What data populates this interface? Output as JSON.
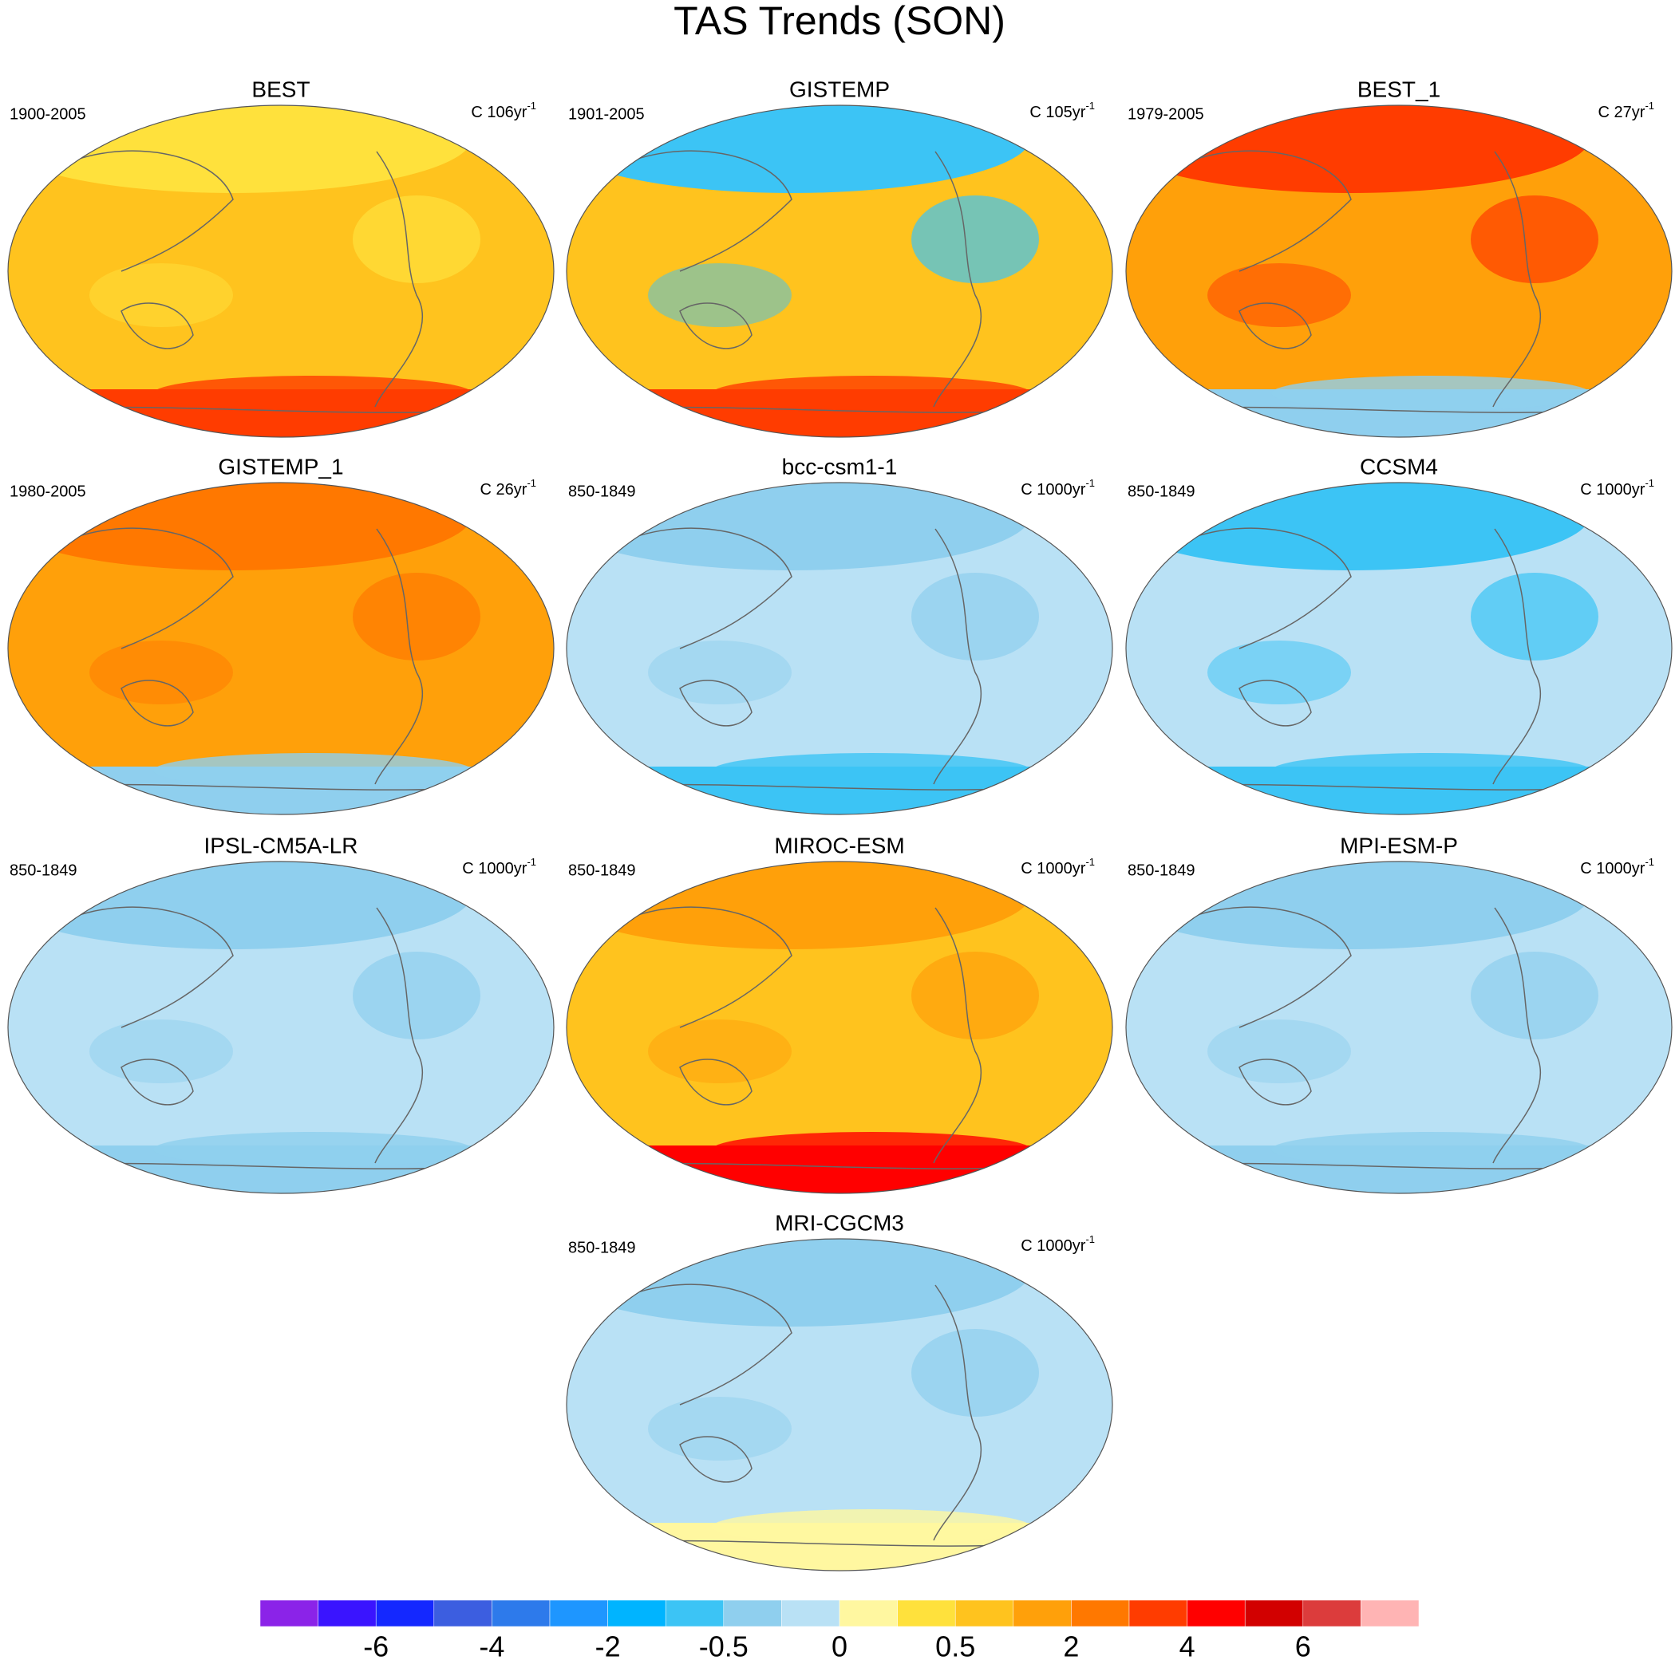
{
  "title": "TAS Trends (SON)",
  "panels": [
    {
      "title": "BEST",
      "period": "1900-2005",
      "units": "C 106yr",
      "units_exponent": "-1",
      "base_color": "#ffc31e",
      "top_color": "#ffe13c",
      "bottom_color": "#ff3c00"
    },
    {
      "title": "GISTEMP",
      "period": "1901-2005",
      "units": "C 105yr",
      "units_exponent": "-1",
      "base_color": "#ffc31e",
      "top_color": "#3cc4f5",
      "bottom_color": "#ff3c00"
    },
    {
      "title": "BEST_1",
      "period": "1979-2005",
      "units": "C 27yr",
      "units_exponent": "-1",
      "base_color": "#ffa00a",
      "top_color": "#ff3c00",
      "bottom_color": "#8fcfee"
    },
    {
      "title": "GISTEMP_1",
      "period": "1980-2005",
      "units": "C 26yr",
      "units_exponent": "-1",
      "base_color": "#ffa00a",
      "top_color": "#ff7800",
      "bottom_color": "#8fcfee"
    },
    {
      "title": "bcc-csm1-1",
      "period": "850-1849",
      "units": "C 1000yr",
      "units_exponent": "-1",
      "base_color": "#b9e1f5",
      "top_color": "#8fcfee",
      "bottom_color": "#3cc4f5"
    },
    {
      "title": "CCSM4",
      "period": "850-1849",
      "units": "C 1000yr",
      "units_exponent": "-1",
      "base_color": "#b9e1f5",
      "top_color": "#3cc4f5",
      "bottom_color": "#3cc4f5"
    },
    {
      "title": "IPSL-CM5A-LR",
      "period": "850-1849",
      "units": "C 1000yr",
      "units_exponent": "-1",
      "base_color": "#b9e1f5",
      "top_color": "#8fcfee",
      "bottom_color": "#8fcfee"
    },
    {
      "title": "MIROC-ESM",
      "period": "850-1849",
      "units": "C 1000yr",
      "units_exponent": "-1",
      "base_color": "#ffc31e",
      "top_color": "#ffa00a",
      "bottom_color": "#ff0000"
    },
    {
      "title": "MPI-ESM-P",
      "period": "850-1849",
      "units": "C 1000yr",
      "units_exponent": "-1",
      "base_color": "#b9e1f5",
      "top_color": "#8fcfee",
      "bottom_color": "#8fcfee"
    },
    {
      "title": "MRI-CGCM3",
      "period": "850-1849",
      "units": "C 1000yr",
      "units_exponent": "-1",
      "base_color": "#b9e1f5",
      "top_color": "#8fcfee",
      "bottom_color": "#fff7a0"
    }
  ],
  "colorbar": {
    "colors": [
      "#8b23e8",
      "#3a14ff",
      "#1428ff",
      "#3c5ee0",
      "#2d7aeb",
      "#1e96ff",
      "#00b4ff",
      "#3cc4f5",
      "#8fcfee",
      "#b9e1f5",
      "#fff7a0",
      "#ffe13c",
      "#ffc31e",
      "#ffa00a",
      "#ff7800",
      "#ff3c00",
      "#ff0000",
      "#d20000",
      "#dc3c3c",
      "#ffb4b4"
    ],
    "labels": [
      -6,
      -4,
      -2,
      -0.5,
      0,
      0.5,
      2,
      4,
      6
    ]
  }
}
